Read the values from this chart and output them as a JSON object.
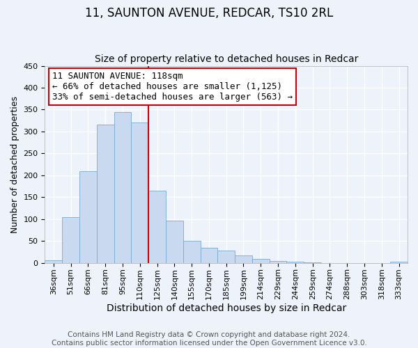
{
  "title": "11, SAUNTON AVENUE, REDCAR, TS10 2RL",
  "subtitle": "Size of property relative to detached houses in Redcar",
  "xlabel": "Distribution of detached houses by size in Redcar",
  "ylabel": "Number of detached properties",
  "bar_color": "#c9d9f0",
  "bar_edge_color": "#7aaad0",
  "background_color": "#eef2fb",
  "grid_color": "#ffffff",
  "categories": [
    "36sqm",
    "51sqm",
    "66sqm",
    "81sqm",
    "95sqm",
    "110sqm",
    "125sqm",
    "140sqm",
    "155sqm",
    "170sqm",
    "185sqm",
    "199sqm",
    "214sqm",
    "229sqm",
    "244sqm",
    "259sqm",
    "274sqm",
    "288sqm",
    "303sqm",
    "318sqm",
    "333sqm"
  ],
  "values": [
    6,
    105,
    210,
    315,
    345,
    320,
    165,
    97,
    50,
    35,
    28,
    17,
    9,
    5,
    2,
    1,
    0,
    0,
    0,
    0,
    2
  ],
  "ylim": [
    0,
    450
  ],
  "yticks": [
    0,
    50,
    100,
    150,
    200,
    250,
    300,
    350,
    400,
    450
  ],
  "vline_x": 5.5,
  "vline_color": "#cc0000",
  "annotation_title": "11 SAUNTON AVENUE: 118sqm",
  "annotation_line1": "← 66% of detached houses are smaller (1,125)",
  "annotation_line2": "33% of semi-detached houses are larger (563) →",
  "annotation_box_color": "#ffffff",
  "annotation_box_edge": "#cc0000",
  "footer_line1": "Contains HM Land Registry data © Crown copyright and database right 2024.",
  "footer_line2": "Contains public sector information licensed under the Open Government Licence v3.0.",
  "title_fontsize": 12,
  "subtitle_fontsize": 10,
  "ylabel_fontsize": 9,
  "xlabel_fontsize": 10,
  "tick_fontsize": 8,
  "annotation_fontsize": 9,
  "footer_fontsize": 7.5
}
